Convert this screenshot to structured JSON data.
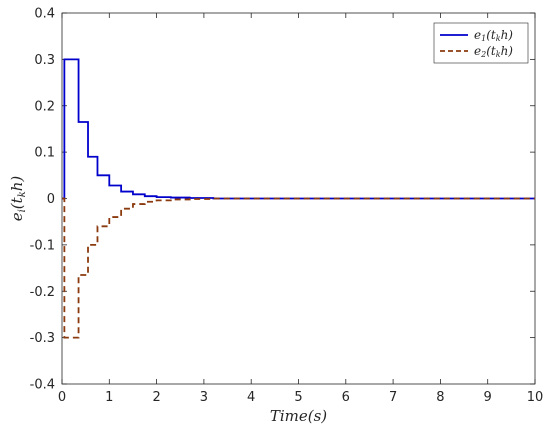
{
  "chart_data": {
    "type": "line",
    "title": "",
    "xlabel": "Time(s)",
    "ylabel": "e_i(t_k h)",
    "xlim": [
      0,
      10
    ],
    "ylim": [
      -0.4,
      0.4
    ],
    "xticks": [
      0,
      1,
      2,
      3,
      4,
      5,
      6,
      7,
      8,
      9,
      10
    ],
    "yticks": [
      -0.4,
      -0.3,
      -0.2,
      -0.1,
      0,
      0.1,
      0.2,
      0.3,
      0.4
    ],
    "xtick_labels": [
      "0",
      "1",
      "2",
      "3",
      "4",
      "5",
      "6",
      "7",
      "8",
      "9",
      "10"
    ],
    "ytick_labels": [
      "-0.4",
      "-0.3",
      "-0.2",
      "-0.1",
      "0",
      "0.1",
      "0.2",
      "0.3",
      "0.4"
    ],
    "grid": false,
    "legend_position": "top-right",
    "series": [
      {
        "name": "e1(tkh)",
        "color": "#0000cc",
        "style": "solid",
        "x": [
          0,
          0.05,
          0.2,
          0.35,
          0.55,
          0.75,
          1.0,
          1.25,
          1.5,
          1.75,
          2.0,
          2.3,
          2.7,
          3.2,
          10
        ],
        "y": [
          0,
          0.3,
          0.3,
          0.165,
          0.09,
          0.05,
          0.028,
          0.015,
          0.009,
          0.005,
          0.003,
          0.002,
          0.001,
          0.0,
          0.0
        ]
      },
      {
        "name": "e2(tkh)",
        "color": "#8b3a0e",
        "style": "dashed",
        "x": [
          0,
          0.05,
          0.2,
          0.35,
          0.55,
          0.75,
          1.0,
          1.25,
          1.5,
          1.75,
          2.0,
          2.3,
          2.7,
          3.2,
          10
        ],
        "y": [
          0,
          -0.3,
          -0.3,
          -0.165,
          -0.1,
          -0.06,
          -0.04,
          -0.022,
          -0.012,
          -0.007,
          -0.004,
          -0.002,
          -0.001,
          0.0,
          0.0
        ]
      }
    ],
    "legend": {
      "entries": [
        {
          "main": "e",
          "sub": "1",
          "mid": "(t",
          "sub2": "k",
          "tail": "h)"
        },
        {
          "main": "e",
          "sub": "2",
          "mid": "(t",
          "sub2": "k",
          "tail": "h)"
        }
      ]
    },
    "ylabel_parts": {
      "main": "e",
      "sub": "i",
      "mid": "(t",
      "sub2": "k",
      "tail": "h)"
    }
  }
}
